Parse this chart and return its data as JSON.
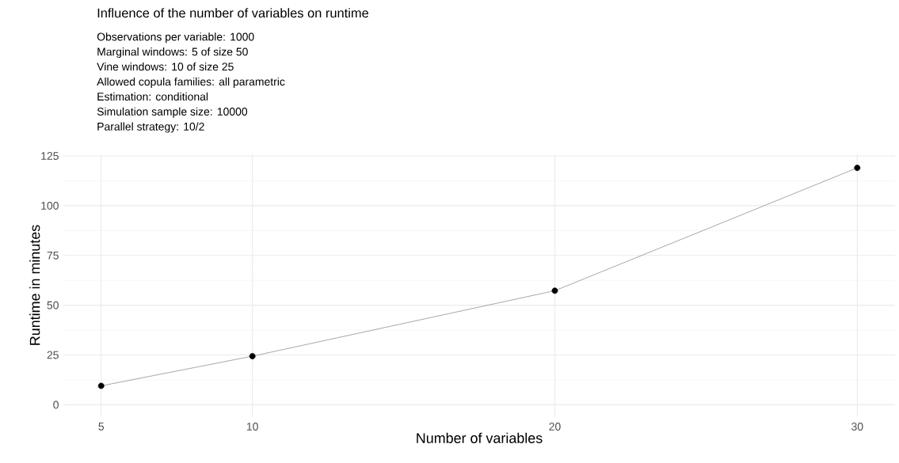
{
  "chart_data": {
    "type": "line",
    "title": "Influence of the number of variables on runtime",
    "annotations": [
      "Observations per variable: 1000",
      "Marginal windows: 5 of size 50",
      "Vine windows: 10 of size 25",
      "Allowed copula families: all parametric",
      "Estimation: conditional",
      "Simulation sample size: 10000",
      "Parallel strategy: 10/2"
    ],
    "xlabel": "Number of variables",
    "ylabel": "Runtime in minutes",
    "x": [
      5,
      10,
      20,
      30
    ],
    "values": [
      9.5,
      24.4,
      57.3,
      119
    ],
    "color": "#000000",
    "xlim": [
      3.75,
      31.25
    ],
    "ylim": [
      -6,
      126
    ],
    "xticks": [
      5,
      10,
      20,
      30
    ],
    "yticks": [
      0,
      25,
      50,
      75,
      100,
      125
    ],
    "grid": true,
    "marker": "circle",
    "line_style": "solid"
  }
}
